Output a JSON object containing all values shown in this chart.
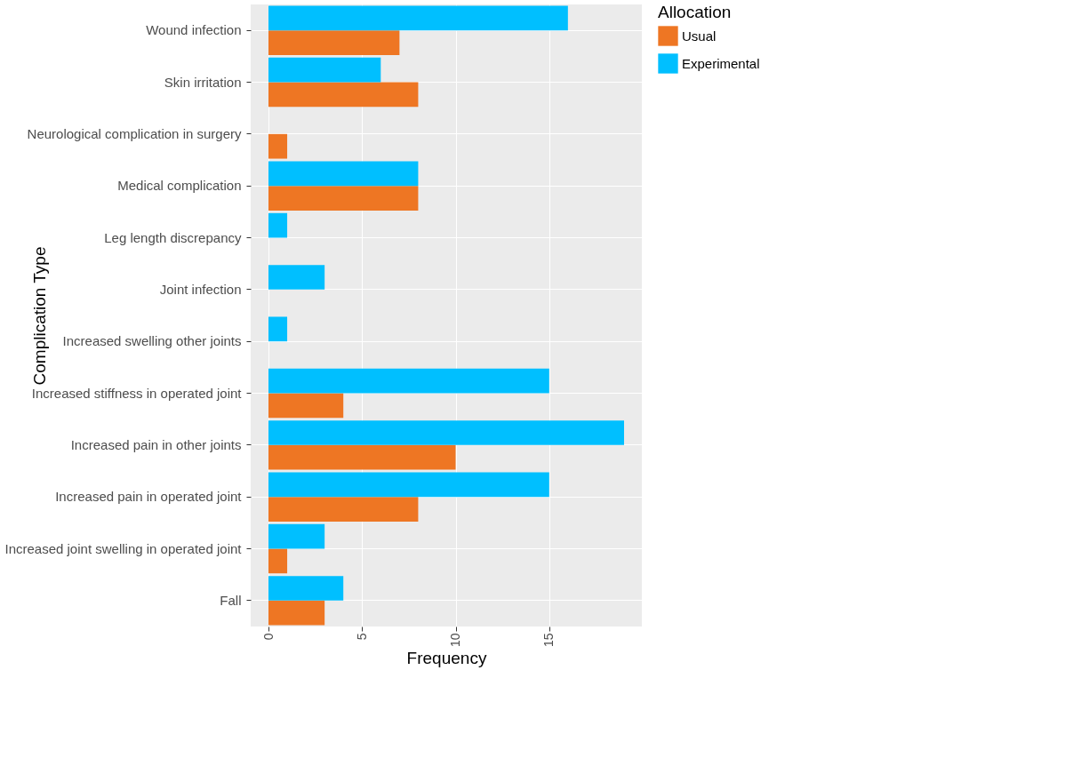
{
  "chart_data": {
    "type": "bar",
    "orientation": "horizontal",
    "xlabel": "Frequency",
    "ylabel": "Complication Type",
    "legend_title": "Allocation",
    "legend": "right",
    "grid": true,
    "categories": [
      "Wound infection",
      "Skin irritation",
      "Neurological complication in surgery",
      "Medical complication",
      "Leg length discrepancy",
      "Joint infection",
      "Increased swelling other joints",
      "Increased stiffness in operated joint",
      "Increased pain in other joints",
      "Increased pain in operated joint",
      "Increased joint swelling in operated joint",
      "Fall"
    ],
    "series": [
      {
        "name": "Usual",
        "color": "#ee7623",
        "values": [
          7,
          8,
          1,
          8,
          null,
          null,
          null,
          4,
          10,
          8,
          1,
          3
        ]
      },
      {
        "name": "Experimental",
        "color": "#00bfff",
        "values": [
          16,
          6,
          null,
          8,
          1,
          3,
          1,
          15,
          19,
          15,
          3,
          4
        ]
      }
    ],
    "xlim": [
      -0.95,
      19.95
    ],
    "xticks": [
      0,
      5,
      10,
      15
    ]
  }
}
